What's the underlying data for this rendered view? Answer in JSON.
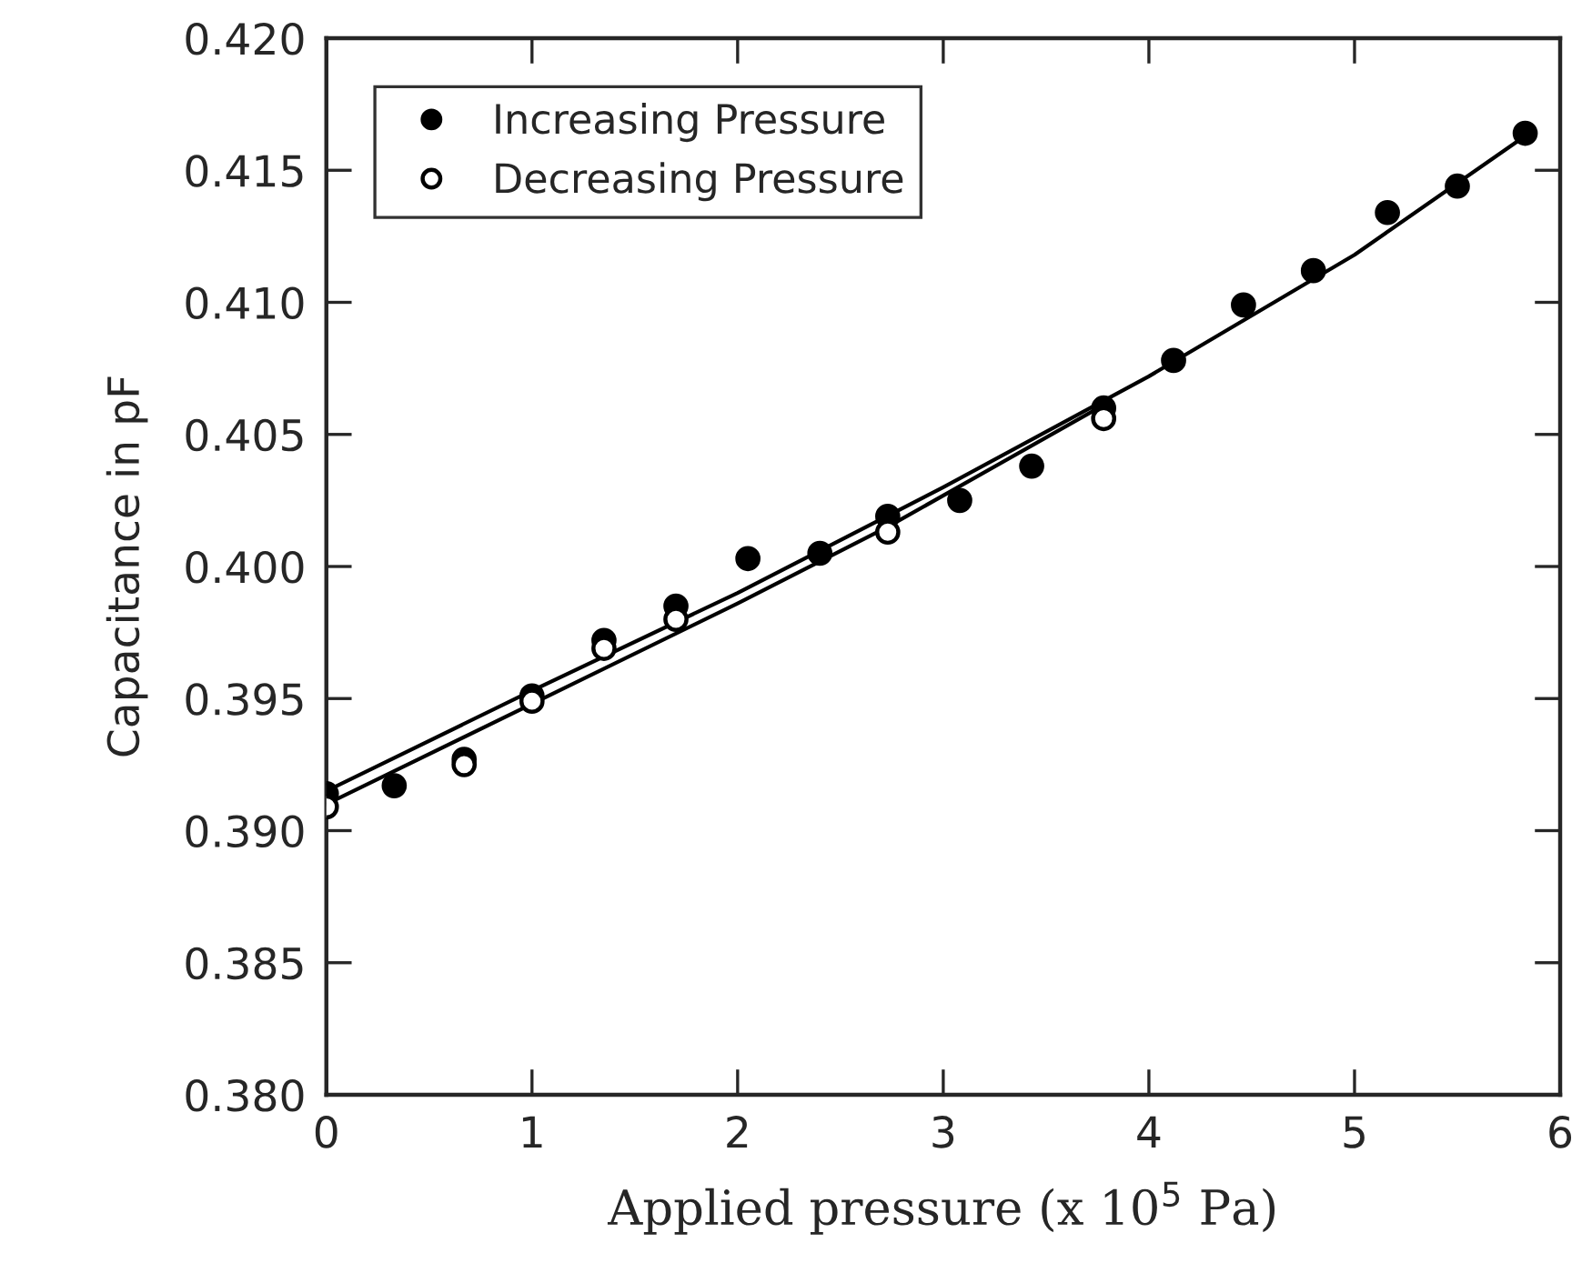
{
  "chart_data": {
    "type": "scatter",
    "xlabel": "Applied pressure (x 10$^{5}$ Pa)",
    "ylabel": "Capacitance in pF",
    "series": [
      {
        "name": "Increasing Pressure",
        "marker": "circle",
        "color": "#000000",
        "x": [
          0,
          0.33,
          0.67,
          1.0,
          1.35,
          1.7,
          2.05,
          2.4,
          2.73,
          3.08,
          3.43,
          3.78,
          4.12,
          4.46,
          4.8,
          5.16,
          5.5,
          5.83
        ],
        "values": [
          0.3914,
          0.3917,
          0.3927,
          0.3951,
          0.3972,
          0.3985,
          0.4003,
          0.4005,
          0.4019,
          0.4025,
          0.4038,
          0.406,
          0.4078,
          0.4099,
          0.4112,
          0.4134,
          0.4144,
          0.4164
        ]
      },
      {
        "name": "Decreasing Pressure",
        "marker": "circle",
        "color": "#ffffff",
        "x": [
          0,
          0.67,
          1.0,
          1.35,
          1.7,
          2.73,
          3.78
        ],
        "values": [
          0.3909,
          0.3925,
          0.3949,
          0.3969,
          0.398,
          0.4013,
          0.4056
        ]
      },
      {
        "type": "line",
        "color": "#000000",
        "x": [
          0,
          1,
          2,
          3,
          4,
          5,
          5.83
        ],
        "values": [
          0.3915,
          0.3953,
          0.399,
          0.403,
          0.4072,
          0.4118,
          0.4163
        ]
      },
      {
        "type": "line",
        "color": "#000000",
        "x": [
          0,
          1,
          2,
          2.73,
          3.8
        ],
        "values": [
          0.391,
          0.3948,
          0.3986,
          0.4015,
          0.4062
        ]
      }
    ],
    "xlim": [
      0,
      6
    ],
    "xticks": [
      0,
      1,
      2,
      3,
      4,
      5,
      6
    ],
    "ylim": [
      0.38,
      0.42
    ],
    "yticks": [
      {
        "value": 0.38,
        "label": "0.380"
      },
      {
        "value": 0.385,
        "label": "0.385"
      },
      {
        "value": 0.39,
        "label": "0.390"
      },
      {
        "value": 0.395,
        "label": "0.395"
      },
      {
        "value": 0.4,
        "label": "0.400"
      },
      {
        "value": 0.405,
        "label": "0.405"
      },
      {
        "value": 0.41,
        "label": "0.410"
      },
      {
        "value": 0.415,
        "label": "0.415"
      },
      {
        "value": 0.42,
        "label": "0.420"
      }
    ],
    "legend": "top left",
    "grid": false
  }
}
